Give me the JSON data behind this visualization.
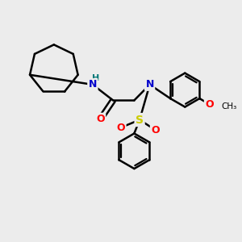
{
  "bg_color": "#ececec",
  "atom_colors": {
    "C": "#000000",
    "N": "#0000cc",
    "O": "#ff0000",
    "S": "#cccc00",
    "H": "#007777"
  },
  "bond_color": "#000000",
  "bond_width": 1.8,
  "figsize": [
    3.0,
    3.0
  ],
  "dpi": 100
}
